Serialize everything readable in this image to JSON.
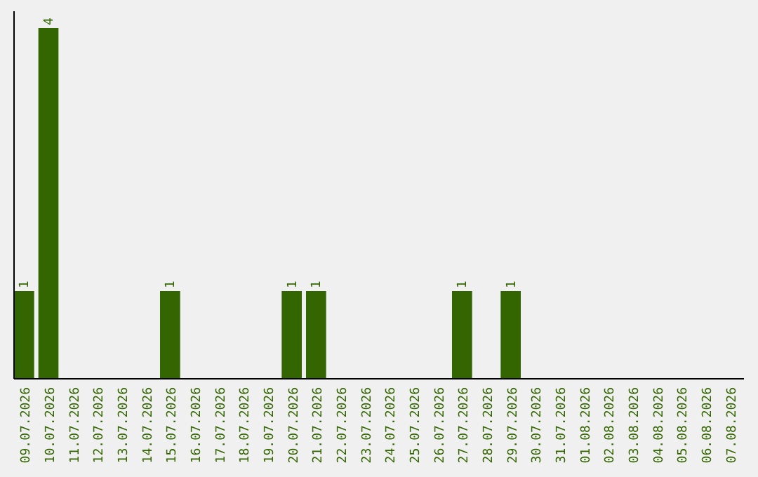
{
  "chart_data": {
    "type": "bar",
    "categories": [
      "09.07.2026",
      "10.07.2026",
      "11.07.2026",
      "12.07.2026",
      "13.07.2026",
      "14.07.2026",
      "15.07.2026",
      "16.07.2026",
      "17.07.2026",
      "18.07.2026",
      "19.07.2026",
      "20.07.2026",
      "21.07.2026",
      "22.07.2026",
      "23.07.2026",
      "24.07.2026",
      "25.07.2026",
      "26.07.2026",
      "27.07.2026",
      "28.07.2026",
      "29.07.2026",
      "30.07.2026",
      "31.07.2026",
      "01.08.2026",
      "02.08.2026",
      "03.08.2026",
      "04.08.2026",
      "05.08.2026",
      "06.08.2026",
      "07.08.2026"
    ],
    "values": [
      1,
      4,
      0,
      0,
      0,
      0,
      1,
      0,
      0,
      0,
      0,
      1,
      1,
      0,
      0,
      0,
      0,
      0,
      1,
      0,
      1,
      0,
      0,
      0,
      0,
      0,
      0,
      0,
      0,
      0
    ],
    "value_labels": [
      "1",
      "4",
      null,
      null,
      null,
      null,
      "1",
      null,
      null,
      null,
      null,
      "1",
      "1",
      null,
      null,
      null,
      null,
      null,
      "1",
      null,
      "1",
      null,
      null,
      null,
      null,
      null,
      null,
      null,
      null,
      null
    ],
    "color": "#336600",
    "tick_labels": "x"
  }
}
